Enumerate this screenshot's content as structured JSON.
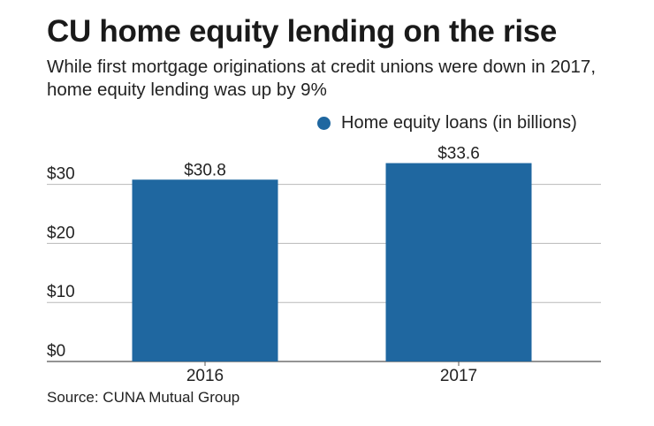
{
  "title": "CU home equity lending on the rise",
  "subtitle": "While first mortgage originations at credit unions were down in 2017, home equity lending was up by 9%",
  "source": "Source: CUNA Mutual Group",
  "colors": {
    "bar": "#1f67a0",
    "grid": "#b8b8b8",
    "axis": "#555555"
  },
  "chart_data": {
    "type": "bar",
    "categories": [
      "2016",
      "2017"
    ],
    "series": [
      {
        "name": "Home equity loans (in billions)",
        "values": [
          30.8,
          33.6
        ]
      }
    ],
    "data_labels": [
      "$30.8",
      "$33.6"
    ],
    "y_ticks": [
      0,
      10,
      20,
      30
    ],
    "y_tick_labels": [
      "$0",
      "$10",
      "$20",
      "$30"
    ],
    "ylim": [
      0,
      30
    ],
    "grid": true,
    "legend_position": "top-right"
  }
}
